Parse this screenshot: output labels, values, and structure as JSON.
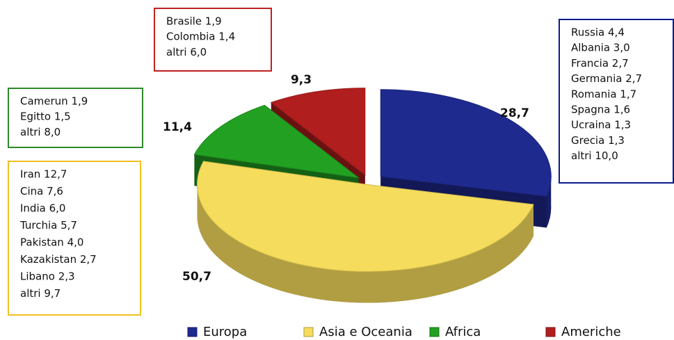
{
  "chart_data": {
    "type": "pie",
    "categories": [
      "Europa",
      "Asia e Oceania",
      "Africa",
      "Americhe"
    ],
    "values": [
      28.7,
      50.7,
      11.4,
      9.3
    ],
    "value_labels": [
      "28,7",
      "50,7",
      "11,4",
      "9,3"
    ],
    "colors": [
      "#1f2a8f",
      "#f6dc5c",
      "#22a022",
      "#b01e1e"
    ],
    "annotations": [
      {
        "color": "#0a1a8a",
        "lines": [
          "Russia  4,4",
          "Albania 3,0",
          "Francia 2,7",
          "Germania 2,7",
          "Romania 1,7",
          "Spagna 1,6",
          "Ucraina 1,3",
          "Grecia 1,3",
          "altri 10,0"
        ]
      },
      {
        "color": "#f0c020",
        "lines": [
          "Iran 12,7",
          "Cina 7,6",
          "India 6,0",
          "Turchia 5,7",
          "Pakistan 4,0",
          "Kazakistan 2,7",
          "Libano 2,3",
          "altri 9,7"
        ]
      },
      {
        "color": "#2a8a2a",
        "lines": [
          "Camerun 1,9",
          "Egitto 1,5",
          "altri 8,0"
        ]
      },
      {
        "color": "#c02020",
        "lines": [
          "Brasile 1,9",
          "Colombia 1,4",
          "altri 6,0"
        ]
      }
    ]
  }
}
